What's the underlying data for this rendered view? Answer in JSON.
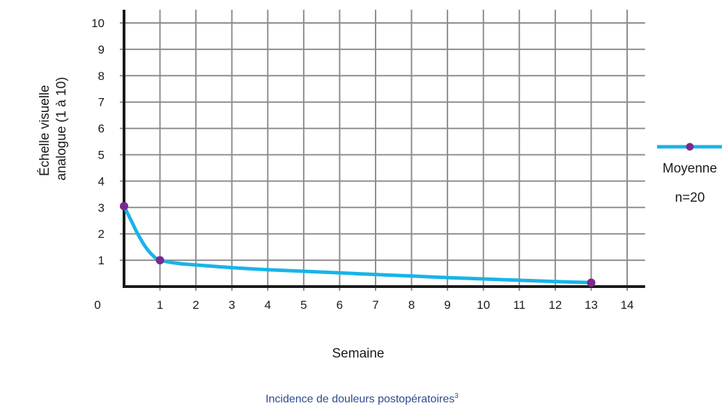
{
  "chart_data": {
    "type": "line",
    "title": "",
    "xlabel": "Semaine",
    "ylabel": "Échelle visuelle analogue (1 à 10)",
    "ylabel_lines": [
      "Échelle visuelle",
      "analogue (1 à 10)"
    ],
    "origin_label": "0",
    "x_ticks": [
      1,
      2,
      3,
      4,
      5,
      6,
      7,
      8,
      9,
      10,
      11,
      12,
      13,
      14
    ],
    "y_ticks": [
      1,
      2,
      3,
      4,
      5,
      6,
      7,
      8,
      9,
      10
    ],
    "xlim": [
      0,
      14.5
    ],
    "ylim": [
      0,
      10.5
    ],
    "grid": true,
    "legend_position": "right",
    "series": [
      {
        "name": "Moyenne",
        "note": "n=20",
        "color": "#18b4e8",
        "marker_color": "#7b2a8c",
        "points": [
          {
            "x": 0,
            "y": 3.05
          },
          {
            "x": 1,
            "y": 1.0
          },
          {
            "x": 13,
            "y": 0.15
          }
        ],
        "curve": [
          {
            "x": 0,
            "y": 3.05
          },
          {
            "x": 0.2,
            "y": 2.5
          },
          {
            "x": 0.4,
            "y": 1.95
          },
          {
            "x": 0.6,
            "y": 1.5
          },
          {
            "x": 0.8,
            "y": 1.18
          },
          {
            "x": 1,
            "y": 1.0
          },
          {
            "x": 1.5,
            "y": 0.88
          },
          {
            "x": 2,
            "y": 0.82
          },
          {
            "x": 3,
            "y": 0.72
          },
          {
            "x": 4,
            "y": 0.64
          },
          {
            "x": 5,
            "y": 0.58
          },
          {
            "x": 6,
            "y": 0.52
          },
          {
            "x": 7,
            "y": 0.46
          },
          {
            "x": 8,
            "y": 0.4
          },
          {
            "x": 9,
            "y": 0.34
          },
          {
            "x": 10,
            "y": 0.29
          },
          {
            "x": 11,
            "y": 0.24
          },
          {
            "x": 12,
            "y": 0.19
          },
          {
            "x": 13,
            "y": 0.15
          }
        ]
      }
    ]
  },
  "caption": {
    "text": "Incidence de douleurs postopératoires",
    "superscript": "3",
    "color": "#2b4a8c"
  }
}
